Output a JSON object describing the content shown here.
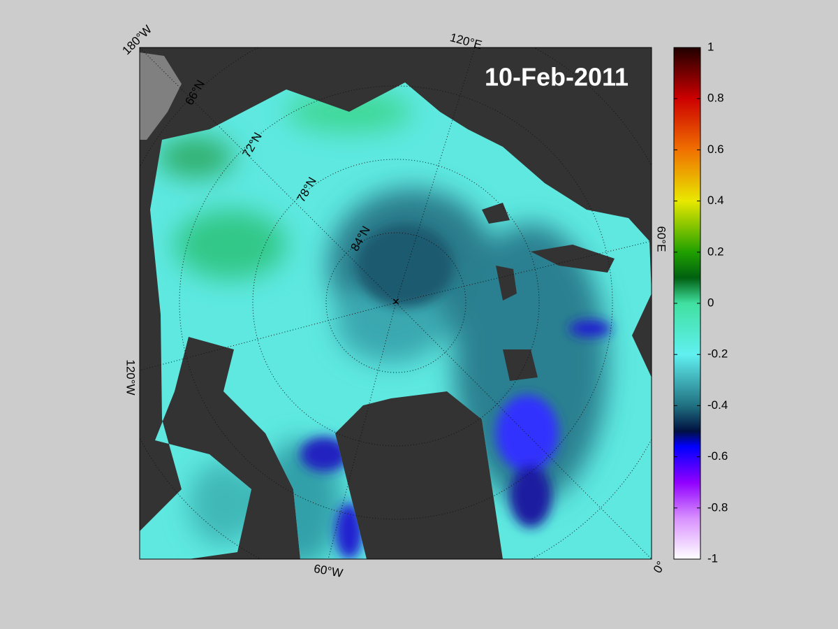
{
  "map": {
    "date": "10-Feb-2011",
    "longitude_labels": [
      "180°W",
      "120°E",
      "60°E",
      "0°",
      "60°W",
      "120°W"
    ],
    "latitude_labels": [
      "66°N",
      "72°N",
      "78°N",
      "84°N"
    ]
  },
  "colorbar": {
    "range": [
      -1,
      1
    ],
    "ticks": [
      1,
      0.8,
      0.6,
      0.4,
      0.2,
      0,
      -0.2,
      -0.4,
      -0.6,
      -0.8,
      -1
    ]
  }
}
